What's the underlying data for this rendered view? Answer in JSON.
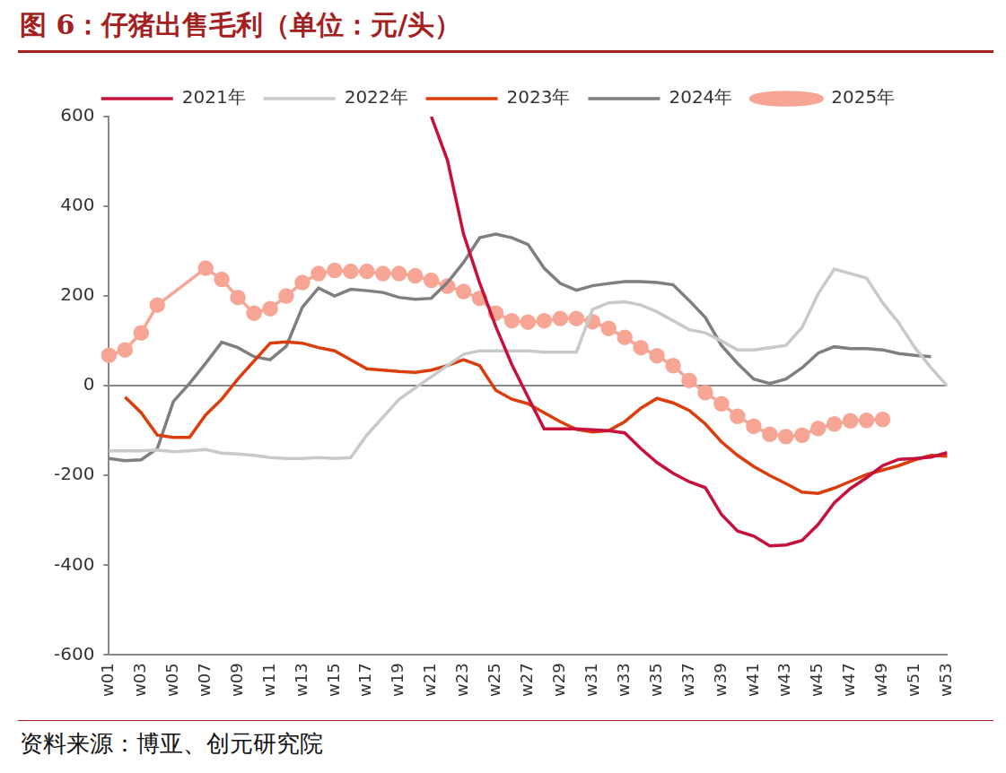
{
  "chart_data": {
    "type": "line",
    "title": "图 6：仔猪出售毛利（单位：元/头）",
    "source": "资料来源：博亚、创元研究院",
    "categories": [
      "w01",
      null,
      "w03",
      null,
      "w05",
      null,
      "w07",
      null,
      "w09",
      null,
      "w11",
      null,
      "w13",
      null,
      "w15",
      null,
      "w17",
      null,
      "w19",
      null,
      "w21",
      null,
      "w23",
      null,
      "w25",
      null,
      "w27",
      null,
      "w29",
      null,
      "w31",
      null,
      "w33",
      null,
      "w35",
      null,
      "w37",
      null,
      "w39",
      null,
      "w41",
      null,
      "w43",
      null,
      "w45",
      null,
      "w47",
      null,
      "w49",
      null,
      "w51",
      null,
      "w53"
    ],
    "ylim": [
      -600,
      600
    ],
    "yticks": [
      -600,
      -400,
      -200,
      0,
      200,
      400,
      600
    ],
    "grid": false,
    "legend": "top",
    "series": [
      {
        "name": "2021年",
        "color": "#c8103c",
        "marker": "none",
        "values": [
          null,
          null,
          null,
          null,
          null,
          null,
          null,
          null,
          null,
          null,
          null,
          null,
          null,
          null,
          null,
          null,
          null,
          null,
          null,
          null,
          600,
          503,
          338,
          229,
          132,
          47,
          -25,
          -96,
          -96,
          -96,
          -98,
          -100,
          -105,
          -140,
          -171,
          -195,
          -214,
          -227,
          -287,
          -324,
          -335,
          -357,
          -355,
          -345,
          -309,
          -261,
          -229,
          -205,
          -178,
          -164,
          -162,
          -159,
          -149
        ]
      },
      {
        "name": "2022年",
        "color": "#c9c9c9",
        "marker": "none",
        "values": [
          -145,
          -145,
          -145,
          -143,
          -147,
          -145,
          -142,
          -150,
          -152,
          -155,
          -160,
          -162,
          -162,
          -160,
          -162,
          -160,
          -110,
          -70,
          -30,
          -5,
          20,
          45,
          70,
          78,
          78,
          78,
          78,
          75,
          75,
          75,
          170,
          185,
          187,
          180,
          165,
          145,
          125,
          118,
          100,
          80,
          80,
          85,
          90,
          130,
          205,
          260,
          250,
          240,
          185,
          140,
          85,
          40,
          0
        ]
      },
      {
        "name": "2023年",
        "color": "#dc3d0c",
        "marker": "none",
        "values": [
          null,
          -25,
          -60,
          -110,
          -115,
          -115,
          -65,
          -30,
          15,
          55,
          95,
          98,
          95,
          85,
          78,
          58,
          38,
          35,
          32,
          30,
          35,
          45,
          58,
          45,
          -10,
          -30,
          -40,
          -60,
          -80,
          -97,
          -103,
          -100,
          -80,
          -50,
          -28,
          -38,
          -55,
          -85,
          -125,
          -155,
          -180,
          -200,
          -218,
          -237,
          -240,
          -228,
          -213,
          -198,
          -188,
          -178,
          -165,
          -155,
          -157
        ]
      },
      {
        "name": "2024年",
        "color": "#7f7f7f",
        "marker": "none",
        "values": [
          -162,
          -167,
          -165,
          -140,
          -35,
          5,
          50,
          97,
          85,
          65,
          58,
          88,
          175,
          218,
          200,
          215,
          212,
          208,
          197,
          193,
          195,
          230,
          275,
          330,
          338,
          330,
          315,
          262,
          228,
          213,
          223,
          228,
          232,
          232,
          230,
          225,
          190,
          152,
          90,
          50,
          15,
          5,
          15,
          40,
          73,
          87,
          83,
          83,
          80,
          72,
          68,
          65,
          null
        ]
      },
      {
        "name": "2025年",
        "color": "#f7a595",
        "marker": "circle",
        "values": [
          68,
          80,
          118,
          180,
          null,
          null,
          262,
          237,
          197,
          162,
          172,
          200,
          230,
          250,
          257,
          255,
          255,
          250,
          250,
          245,
          235,
          222,
          210,
          195,
          162,
          145,
          142,
          145,
          150,
          150,
          143,
          128,
          108,
          85,
          67,
          45,
          12,
          -15,
          -40,
          -68,
          -90,
          -108,
          -113,
          -110,
          -95,
          -85,
          -78,
          -77,
          -75,
          null,
          null,
          null,
          null
        ]
      }
    ]
  }
}
